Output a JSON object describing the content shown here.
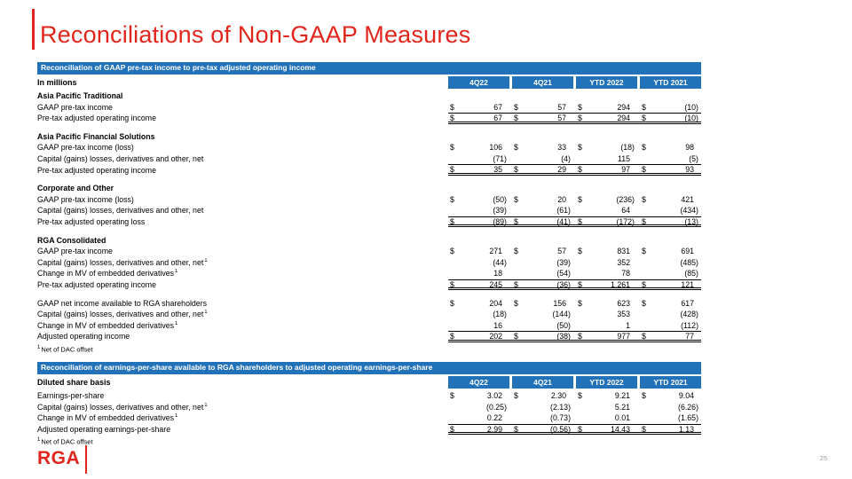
{
  "slide": {
    "title": "Reconciliations of Non-GAAP Measures",
    "page_number": "25",
    "logo_text": "RGA"
  },
  "colors": {
    "header_blue": "#2272B9",
    "brand_red": "#E0261C",
    "text_black": "#000000"
  },
  "table1": {
    "title": "Reconciliation of GAAP pre-tax income to pre-tax adjusted operating income",
    "left_header": "In millions",
    "columns": [
      "4Q22",
      "4Q21",
      "YTD 2022",
      "YTD 2021"
    ],
    "footnote_marker": "1",
    "footnote": "Net of DAC offset",
    "rows": [
      {
        "type": "section",
        "label": "Asia Pacific Traditional"
      },
      {
        "type": "data",
        "label": "GAAP pre-tax income",
        "dollar": true,
        "values": [
          "67",
          "57",
          "294",
          "(10)"
        ]
      },
      {
        "type": "total",
        "label": "Pre-tax adjusted operating income",
        "dollar": true,
        "values": [
          "67",
          "57",
          "294",
          "(10)"
        ]
      },
      {
        "type": "spacer"
      },
      {
        "type": "section",
        "label": "Asia Pacific Financial Solutions"
      },
      {
        "type": "data",
        "label": "GAAP pre-tax income (loss)",
        "dollar": true,
        "values": [
          "106",
          "33",
          "(18)",
          "98"
        ]
      },
      {
        "type": "data",
        "label": "Capital (gains) losses, derivatives and other, net",
        "dollar": false,
        "values": [
          "(71)",
          "(4)",
          "115",
          "(5)"
        ]
      },
      {
        "type": "total",
        "label": "Pre-tax adjusted operating income",
        "dollar": true,
        "values": [
          "35",
          "29",
          "97",
          "93"
        ]
      },
      {
        "type": "spacer"
      },
      {
        "type": "section",
        "label": "Corporate and Other"
      },
      {
        "type": "data",
        "label": "GAAP pre-tax income (loss)",
        "dollar": true,
        "values": [
          "(50)",
          "20",
          "(236)",
          "421"
        ]
      },
      {
        "type": "data",
        "label": "Capital (gains) losses, derivatives and other, net",
        "dollar": false,
        "values": [
          "(39)",
          "(61)",
          "64",
          "(434)"
        ]
      },
      {
        "type": "total",
        "label": "Pre-tax adjusted operating loss",
        "dollar": true,
        "values": [
          "(89)",
          "(41)",
          "(172)",
          "(13)"
        ]
      },
      {
        "type": "spacer"
      },
      {
        "type": "section",
        "label": "RGA Consolidated"
      },
      {
        "type": "data",
        "label": "GAAP pre-tax income",
        "dollar": true,
        "values": [
          "271",
          "57",
          "831",
          "691"
        ]
      },
      {
        "type": "data",
        "label": "Capital (gains) losses, derivatives and other, net",
        "sup": "1",
        "dollar": false,
        "values": [
          "(44)",
          "(39)",
          "352",
          "(485)"
        ]
      },
      {
        "type": "data",
        "label": "Change in MV of embedded derivatives",
        "sup": "1",
        "dollar": false,
        "values": [
          "18",
          "(54)",
          "78",
          "(85)"
        ]
      },
      {
        "type": "total",
        "label": "Pre-tax adjusted operating income",
        "dollar": true,
        "values": [
          "245",
          "(36)",
          "1,261",
          "121"
        ]
      },
      {
        "type": "spacer"
      },
      {
        "type": "data",
        "label": "GAAP net income available to RGA shareholders",
        "dollar": true,
        "values": [
          "204",
          "156",
          "623",
          "617"
        ]
      },
      {
        "type": "data",
        "label": "Capital (gains) losses, derivatives and other, net",
        "sup": "1",
        "dollar": false,
        "values": [
          "(18)",
          "(144)",
          "353",
          "(428)"
        ]
      },
      {
        "type": "data",
        "label": "Change in MV of embedded derivatives",
        "sup": "1",
        "dollar": false,
        "values": [
          "16",
          "(50)",
          "1",
          "(112)"
        ]
      },
      {
        "type": "total",
        "label": "Adjusted operating income",
        "dollar": true,
        "values": [
          "202",
          "(38)",
          "977",
          "77"
        ]
      }
    ]
  },
  "table2": {
    "title": "Reconciliation of earnings-per-share available to RGA shareholders to adjusted operating earnings-per-share",
    "left_header": "Diluted share basis",
    "columns": [
      "4Q22",
      "4Q21",
      "YTD 2022",
      "YTD 2021"
    ],
    "footnote_marker": "1",
    "footnote": "Net of DAC offset",
    "rows": [
      {
        "type": "data",
        "label": "Earnings-per-share",
        "dollar": true,
        "values": [
          "3.02",
          "2.30",
          "9.21",
          "9.04"
        ]
      },
      {
        "type": "data",
        "label": "Capital (gains) losses, derivatives and other, net",
        "sup": "1",
        "dollar": false,
        "values": [
          "(0.25)",
          "(2.13)",
          "5.21",
          "(6.26)"
        ]
      },
      {
        "type": "data",
        "label": "Change in MV of embedded derivatives",
        "sup": "1",
        "dollar": false,
        "values": [
          "0.22",
          "(0.73)",
          "0.01",
          "(1.65)"
        ]
      },
      {
        "type": "total",
        "label": "Adjusted operating earnings-per-share",
        "dollar": true,
        "values": [
          "2.99",
          "(0.56)",
          "14.43",
          "1.13"
        ]
      }
    ]
  }
}
